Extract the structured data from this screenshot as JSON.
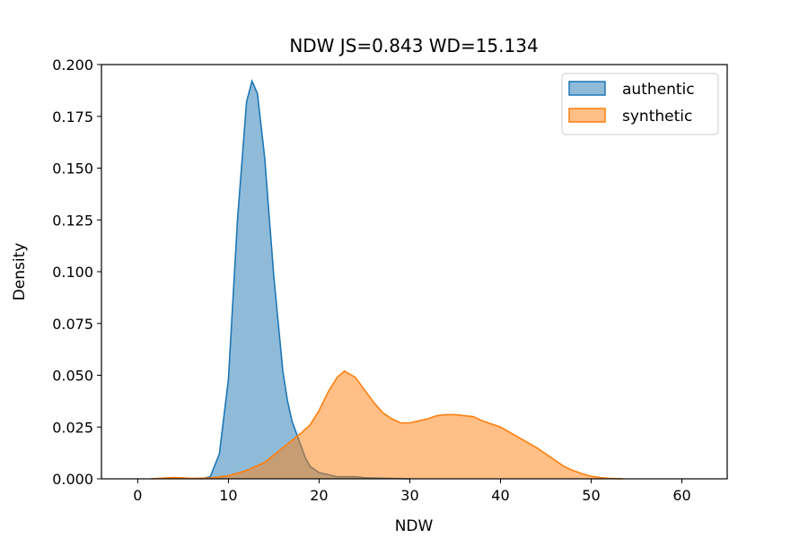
{
  "chart_data": {
    "type": "area",
    "title": "NDW  JS=0.843  WD=15.134",
    "xlabel": "NDW",
    "ylabel": "Density",
    "xlim": [
      -4,
      65
    ],
    "ylim": [
      0,
      0.2
    ],
    "xticks": [
      0,
      10,
      20,
      30,
      40,
      50,
      60
    ],
    "yticks": [
      0.0,
      0.025,
      0.05,
      0.075,
      0.1,
      0.125,
      0.15,
      0.175,
      0.2
    ],
    "ytick_labels": [
      "0.000",
      "0.025",
      "0.050",
      "0.075",
      "0.100",
      "0.125",
      "0.150",
      "0.175",
      "0.200"
    ],
    "legend_position": "top-right",
    "series": [
      {
        "name": "authentic",
        "color": "#1f77b4",
        "points": [
          [
            7.0,
            0.0
          ],
          [
            8.0,
            0.001
          ],
          [
            9.0,
            0.012
          ],
          [
            10.0,
            0.048
          ],
          [
            11.0,
            0.125
          ],
          [
            12.0,
            0.182
          ],
          [
            12.6,
            0.192
          ],
          [
            13.2,
            0.186
          ],
          [
            14.0,
            0.155
          ],
          [
            15.0,
            0.098
          ],
          [
            16.0,
            0.052
          ],
          [
            16.5,
            0.038
          ],
          [
            17.0,
            0.028
          ],
          [
            18.0,
            0.016
          ],
          [
            18.5,
            0.01
          ],
          [
            19.0,
            0.006
          ],
          [
            20.0,
            0.003
          ],
          [
            21.0,
            0.002
          ],
          [
            22.0,
            0.001
          ],
          [
            24.0,
            0.001
          ],
          [
            25.0,
            0.0005
          ],
          [
            27.0,
            0.0003
          ],
          [
            28.0,
            0.0002
          ],
          [
            30.0,
            0.0
          ]
        ]
      },
      {
        "name": "synthetic",
        "color": "#ff7f0e",
        "points": [
          [
            1.5,
            0.0
          ],
          [
            3.0,
            0.0004
          ],
          [
            4.0,
            0.0006
          ],
          [
            6.0,
            0.0002
          ],
          [
            8.0,
            0.0004
          ],
          [
            10.0,
            0.0015
          ],
          [
            12.0,
            0.004
          ],
          [
            14.0,
            0.008
          ],
          [
            16.0,
            0.015
          ],
          [
            18.0,
            0.022
          ],
          [
            19.0,
            0.026
          ],
          [
            20.0,
            0.033
          ],
          [
            21.0,
            0.042
          ],
          [
            22.0,
            0.049
          ],
          [
            22.8,
            0.052
          ],
          [
            24.0,
            0.049
          ],
          [
            25.0,
            0.043
          ],
          [
            26.0,
            0.037
          ],
          [
            27.0,
            0.032
          ],
          [
            28.0,
            0.029
          ],
          [
            29.0,
            0.027
          ],
          [
            30.0,
            0.027
          ],
          [
            31.0,
            0.028
          ],
          [
            32.0,
            0.029
          ],
          [
            33.0,
            0.0305
          ],
          [
            34.0,
            0.031
          ],
          [
            35.0,
            0.031
          ],
          [
            36.0,
            0.0305
          ],
          [
            37.0,
            0.03
          ],
          [
            38.0,
            0.028
          ],
          [
            40.0,
            0.025
          ],
          [
            42.0,
            0.02
          ],
          [
            44.0,
            0.015
          ],
          [
            45.0,
            0.012
          ],
          [
            46.0,
            0.009
          ],
          [
            47.0,
            0.006
          ],
          [
            48.0,
            0.004
          ],
          [
            49.0,
            0.0025
          ],
          [
            50.0,
            0.0012
          ],
          [
            51.0,
            0.0006
          ],
          [
            52.0,
            0.0002
          ],
          [
            53.5,
            0.0
          ]
        ]
      }
    ]
  }
}
